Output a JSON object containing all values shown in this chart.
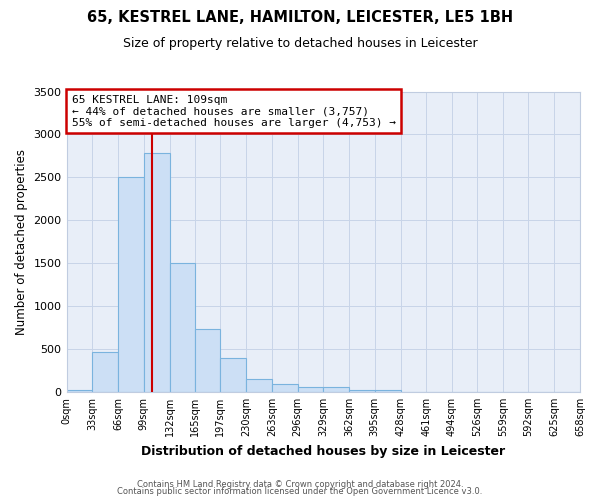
{
  "title": "65, KESTREL LANE, HAMILTON, LEICESTER, LE5 1BH",
  "subtitle": "Size of property relative to detached houses in Leicester",
  "xlabel": "Distribution of detached houses by size in Leicester",
  "ylabel": "Number of detached properties",
  "bar_color": "#ccdff5",
  "bar_edge_color": "#7ab3de",
  "bin_labels": [
    "0sqm",
    "33sqm",
    "66sqm",
    "99sqm",
    "132sqm",
    "165sqm",
    "197sqm",
    "230sqm",
    "263sqm",
    "296sqm",
    "329sqm",
    "362sqm",
    "395sqm",
    "428sqm",
    "461sqm",
    "494sqm",
    "526sqm",
    "559sqm",
    "592sqm",
    "625sqm",
    "658sqm"
  ],
  "bar_values": [
    28,
    460,
    2500,
    2780,
    1500,
    730,
    390,
    150,
    90,
    60,
    60,
    25,
    20,
    0,
    0,
    0,
    0,
    0,
    0,
    0
  ],
  "ylim": [
    0,
    3500
  ],
  "yticks": [
    0,
    500,
    1000,
    1500,
    2000,
    2500,
    3000,
    3500
  ],
  "property_line_x": 109,
  "annotation_title": "65 KESTREL LANE: 109sqm",
  "annotation_line1": "← 44% of detached houses are smaller (3,757)",
  "annotation_line2": "55% of semi-detached houses are larger (4,753) →",
  "annotation_box_facecolor": "#ffffff",
  "annotation_box_edgecolor": "#cc0000",
  "vline_color": "#cc0000",
  "bin_edges": [
    0,
    33,
    66,
    99,
    132,
    165,
    197,
    230,
    263,
    296,
    329,
    362,
    395,
    428,
    461,
    494,
    526,
    559,
    592,
    625,
    658
  ],
  "footer1": "Contains HM Land Registry data © Crown copyright and database right 2024.",
  "footer2": "Contains public sector information licensed under the Open Government Licence v3.0.",
  "fig_facecolor": "#ffffff",
  "axes_facecolor": "#e8eef8",
  "grid_color": "#c8d4e8",
  "spine_color": "#c0cce0"
}
